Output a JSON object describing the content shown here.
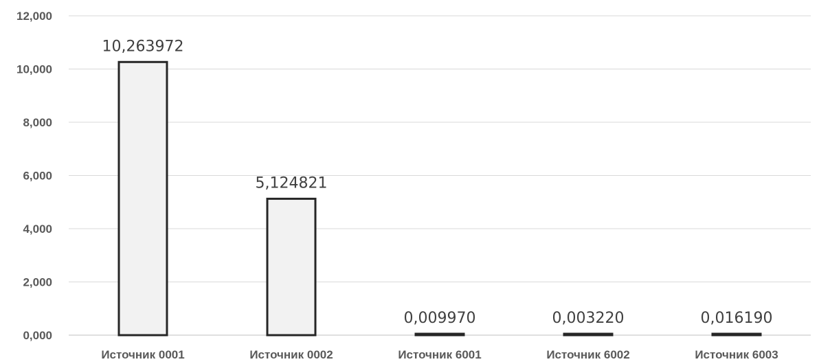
{
  "chart_data": {
    "type": "bar",
    "categories": [
      "Источник 0001",
      "Источник 0002",
      "Источник 6001",
      "Источник 6002",
      "Источник 6003"
    ],
    "values": [
      10.263972,
      5.124821,
      0.00997,
      0.00322,
      0.01619
    ],
    "data_labels": [
      "10,263972",
      "5,124821",
      "0,009970",
      "0,003220",
      "0,016190"
    ],
    "y_ticks": [
      "0,000",
      "2,000",
      "4,000",
      "6,000",
      "8,000",
      "10,000",
      "12,000"
    ],
    "ylim": [
      0,
      12
    ],
    "y_step": 2,
    "grid": true,
    "legend": "none",
    "title": "",
    "xlabel": "",
    "ylabel": "",
    "colors": {
      "bar_fill": "#f2f2f2",
      "bar_stroke": "#262626",
      "grid": "#d9d9d9"
    }
  }
}
